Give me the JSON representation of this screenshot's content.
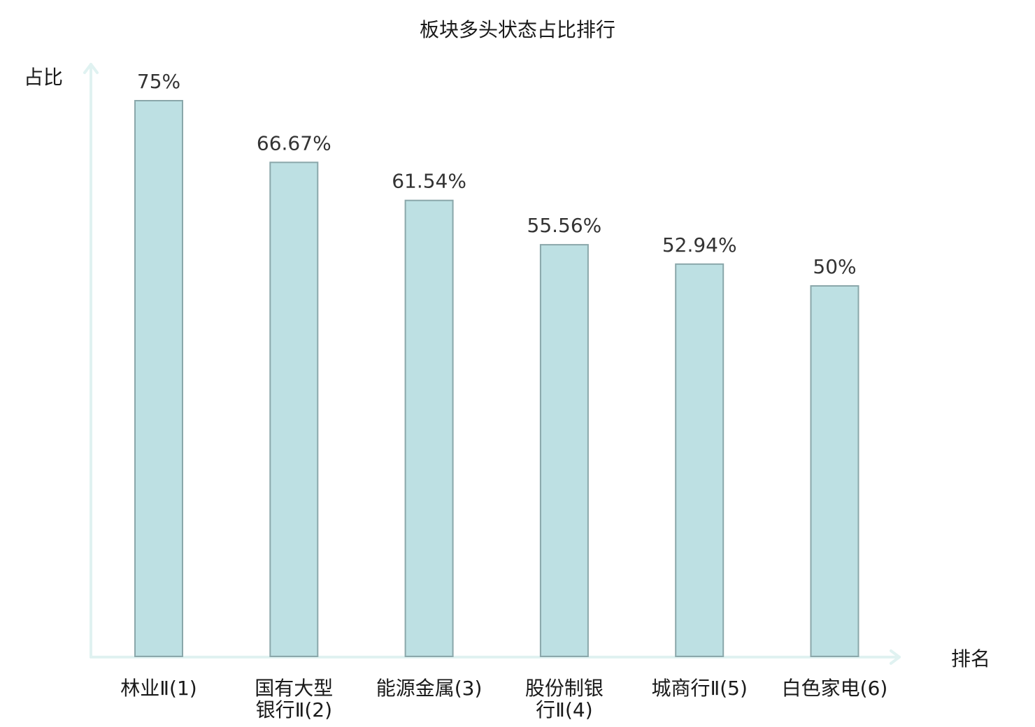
{
  "chart_data": {
    "type": "bar",
    "title": "板块多头状态占比排行",
    "ylabel": "占比",
    "xlabel": "排名",
    "ylim": [
      0,
      80
    ],
    "grid": false,
    "legend": "none",
    "categories": [
      [
        "林业Ⅱ(1)"
      ],
      [
        "国有大型",
        "银行Ⅱ(2)"
      ],
      [
        "能源金属(3)"
      ],
      [
        "股份制银",
        "行Ⅱ(4)"
      ],
      [
        "城商行Ⅱ(5)"
      ],
      [
        "白色家电(6)"
      ]
    ],
    "values": [
      75,
      66.67,
      61.54,
      55.56,
      52.94,
      50
    ],
    "value_labels": [
      "75%",
      "66.67%",
      "61.54%",
      "55.56%",
      "52.94%",
      "50%"
    ],
    "highlight_index": 5,
    "colors": {
      "bar_fill": "#bde0e3",
      "bar_stroke": "#8aa7aa",
      "axis": "#e0f2f1",
      "highlight_text": "#e31a1c",
      "text": "#1a1a1a"
    }
  }
}
